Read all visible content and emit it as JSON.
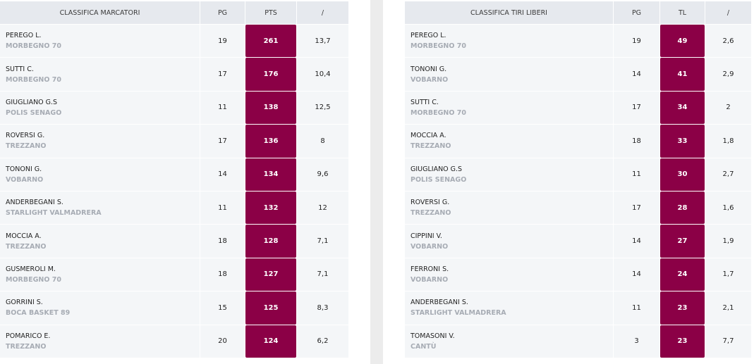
{
  "scorers": {
    "headers": {
      "title": "CLASSIFICA MARCATORI",
      "games": "PG",
      "points": "PTS",
      "avg": "/"
    },
    "rows": [
      {
        "name": "PEREGO L.",
        "team": "MORBEGNO 70",
        "games": "19",
        "points": "261",
        "avg": "13,7"
      },
      {
        "name": "SUTTI C.",
        "team": "MORBEGNO 70",
        "games": "17",
        "points": "176",
        "avg": "10,4"
      },
      {
        "name": "GIUGLIANO G.S",
        "team": "POLIS SENAGO",
        "games": "11",
        "points": "138",
        "avg": "12,5"
      },
      {
        "name": "ROVERSI G.",
        "team": "TREZZANO",
        "games": "17",
        "points": "136",
        "avg": "8"
      },
      {
        "name": "TONONI G.",
        "team": "VOBARNO",
        "games": "14",
        "points": "134",
        "avg": "9,6"
      },
      {
        "name": "ANDERBEGANI S.",
        "team": "STARLIGHT VALMADRERA",
        "games": "11",
        "points": "132",
        "avg": "12"
      },
      {
        "name": "MOCCIA A.",
        "team": "TREZZANO",
        "games": "18",
        "points": "128",
        "avg": "7,1"
      },
      {
        "name": "GUSMEROLI M.",
        "team": "MORBEGNO 70",
        "games": "18",
        "points": "127",
        "avg": "7,1"
      },
      {
        "name": "GORRINI S.",
        "team": "BOCA BASKET 89",
        "games": "15",
        "points": "125",
        "avg": "8,3"
      },
      {
        "name": "POMARICO E.",
        "team": "TREZZANO",
        "games": "20",
        "points": "124",
        "avg": "6,2"
      }
    ]
  },
  "free_throws": {
    "headers": {
      "title": "CLASSIFICA TIRI LIBERI",
      "games": "PG",
      "points": "TL",
      "avg": "/"
    },
    "rows": [
      {
        "name": "PEREGO L.",
        "team": "MORBEGNO 70",
        "games": "19",
        "points": "49",
        "avg": "2,6"
      },
      {
        "name": "TONONI G.",
        "team": "VOBARNO",
        "games": "14",
        "points": "41",
        "avg": "2,9"
      },
      {
        "name": "SUTTI C.",
        "team": "MORBEGNO 70",
        "games": "17",
        "points": "34",
        "avg": "2"
      },
      {
        "name": "MOCCIA A.",
        "team": "TREZZANO",
        "games": "18",
        "points": "33",
        "avg": "1,8"
      },
      {
        "name": "GIUGLIANO G.S",
        "team": "POLIS SENAGO",
        "games": "11",
        "points": "30",
        "avg": "2,7"
      },
      {
        "name": "ROVERSI G.",
        "team": "TREZZANO",
        "games": "17",
        "points": "28",
        "avg": "1,6"
      },
      {
        "name": "CIPPINI V.",
        "team": "VOBARNO",
        "games": "14",
        "points": "27",
        "avg": "1,9"
      },
      {
        "name": "FERRONI S.",
        "team": "VOBARNO",
        "games": "14",
        "points": "24",
        "avg": "1,7"
      },
      {
        "name": "ANDERBEGANI S.",
        "team": "STARLIGHT VALMADRERA",
        "games": "11",
        "points": "23",
        "avg": "2,1"
      },
      {
        "name": "TOMASONI V.",
        "team": "CANTÙ",
        "games": "3",
        "points": "23",
        "avg": "7,7"
      }
    ]
  },
  "colors": {
    "highlight": "#8b0046",
    "header_bg": "#e6e9ee",
    "row_bg": "#f4f6f8",
    "team_text": "#a7acb4"
  }
}
